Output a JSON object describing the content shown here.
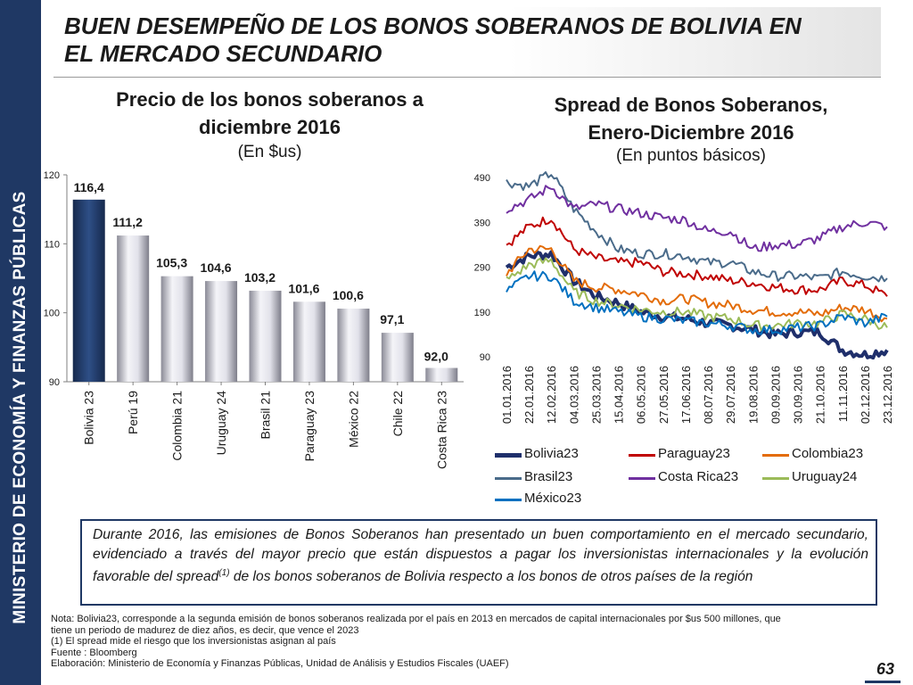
{
  "sidebar": {
    "text": "MINISTERIO DE ECONOMÍA Y FINANZAS PÚBLICAS"
  },
  "title": {
    "line1": "BUEN DESEMPEÑO DE LOS BONOS SOBERANOS DE BOLIVIA EN",
    "line2": "EL MERCADO SECUNDARIO"
  },
  "chart_data": [
    {
      "type": "bar",
      "title": "Precio de los bonos soberanos a diciembre 2016",
      "subtitle": "(En $us)",
      "title_lines": [
        "Precio de los bonos soberanos a",
        "diciembre 2016"
      ],
      "categories": [
        "Bolivia 23",
        "Perú 19",
        "Colombia 21",
        "Uruguay 24",
        "Brasil 21",
        "Paraguay 23",
        "México 22",
        "Chile 22",
        "Costa Rica 23"
      ],
      "values": [
        116.4,
        111.2,
        105.3,
        104.6,
        103.2,
        101.6,
        100.6,
        97.1,
        92.0
      ],
      "data_labels": [
        "116,4",
        "111,2",
        "105,3",
        "104,6",
        "103,2",
        "101,6",
        "100,6",
        "97,1",
        "92,0"
      ],
      "ylim": [
        90,
        120
      ],
      "yticks": [
        "90",
        "100",
        "110",
        "120"
      ],
      "highlight_color": "#1f3864",
      "bar_color": "#c8c8d2"
    },
    {
      "type": "line",
      "title": "Spread de Bonos Soberanos, Enero-Diciembre 2016",
      "subtitle": "(En puntos básicos)",
      "title_lines": [
        "Spread de Bonos Soberanos,",
        "Enero-Diciembre 2016"
      ],
      "x": [
        "01.01.2016",
        "22.01.2016",
        "12.02.2016",
        "04.03.2016",
        "25.03.2016",
        "15.04.2016",
        "06.05.2016",
        "27.05.2016",
        "17.06.2016",
        "08.07.2016",
        "29.07.2016",
        "19.08.2016",
        "09.09.2016",
        "30.09.2016",
        "21.10.2016",
        "11.11.2016",
        "02.12.2016",
        "23.12.2016"
      ],
      "ylim": [
        90,
        490
      ],
      "yticks": [
        "90",
        "190",
        "290",
        "390",
        "490"
      ],
      "legend": "bottom",
      "series": [
        {
          "name": "Bolivia23",
          "color": "#1f2f6b",
          "values": [
            290,
            315,
            320,
            260,
            225,
            210,
            190,
            180,
            175,
            165,
            160,
            150,
            140,
            145,
            145,
            105,
            95,
            105
          ]
        },
        {
          "name": "Paraguay23",
          "color": "#c00000",
          "values": [
            340,
            380,
            400,
            330,
            310,
            300,
            300,
            280,
            275,
            270,
            260,
            255,
            245,
            240,
            240,
            260,
            250,
            225
          ]
        },
        {
          "name": "Colombia23",
          "color": "#e36c09",
          "values": [
            275,
            330,
            330,
            260,
            245,
            240,
            230,
            215,
            220,
            210,
            205,
            195,
            190,
            190,
            185,
            200,
            195,
            175
          ]
        },
        {
          "name": "Brasil23",
          "color": "#4a6b8a",
          "values": [
            480,
            470,
            500,
            420,
            370,
            330,
            320,
            320,
            315,
            300,
            300,
            280,
            270,
            270,
            265,
            280,
            270,
            265
          ]
        },
        {
          "name": "Costa Rica23",
          "color": "#7030a0",
          "values": [
            420,
            440,
            470,
            420,
            430,
            420,
            410,
            400,
            395,
            370,
            370,
            330,
            340,
            340,
            355,
            380,
            390,
            380
          ]
        },
        {
          "name": "Uruguay24",
          "color": "#9bbb59",
          "values": [
            260,
            295,
            305,
            235,
            215,
            205,
            195,
            190,
            190,
            180,
            175,
            160,
            160,
            165,
            165,
            185,
            175,
            155
          ]
        },
        {
          "name": "México23",
          "color": "#0070c0",
          "values": [
            235,
            270,
            270,
            215,
            200,
            190,
            180,
            175,
            170,
            165,
            160,
            150,
            150,
            155,
            160,
            180,
            165,
            180
          ]
        }
      ]
    }
  ],
  "summary": {
    "text": "Durante 2016, las emisiones de Bonos Soberanos han presentado un buen comportamiento en el mercado secundario, evidenciado a través del mayor precio que están dispuestos a pagar los inversionistas internacionales y la evolución favorable del spread",
    "sup": "(1)",
    "text_after": " de los bonos soberanos de Bolivia respecto a los bonos de otros países de la región"
  },
  "notes": {
    "line1": "Nota: Bolivia23, corresponde a la segunda emisión de bonos soberanos realizada por el país en 2013 en mercados de capital internacionales por $us 500 millones, que",
    "line2": "tiene un periodo de madurez de diez años, es decir, que vence el 2023",
    "line3": "(1) El spread mide el riesgo que los inversionistas asignan al país",
    "line4": "Fuente : Bloomberg",
    "line5": "Elaboración: Ministerio de Economía y Finanzas Públicas, Unidad de Análisis y Estudios Fiscales (UAEF)"
  },
  "page_number": "63"
}
